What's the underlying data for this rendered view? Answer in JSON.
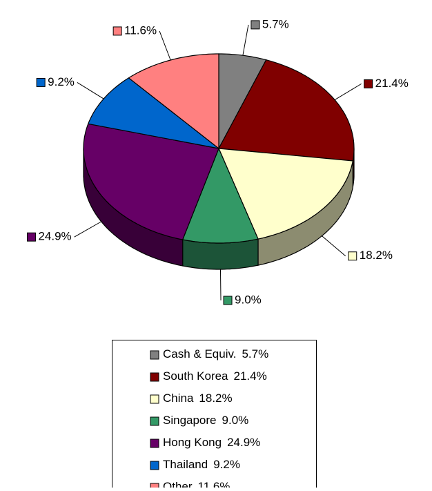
{
  "chart_data": {
    "type": "pie3d",
    "categories": [
      "Cash & Equiv.",
      "South Korea",
      "China",
      "Singapore",
      "Hong Kong",
      "Thailand",
      "Other"
    ],
    "values": [
      5.7,
      21.4,
      18.2,
      9.0,
      24.9,
      9.2,
      11.6
    ],
    "value_labels": [
      "5.7%",
      "21.4%",
      "18.2%",
      "9.0%",
      "24.9%",
      "9.2%",
      "11.6%"
    ],
    "colors": [
      "#808080",
      "#800000",
      "#ffffcc",
      "#339966",
      "#660066",
      "#0066cc",
      "#ff8080"
    ],
    "legend": "bottom"
  }
}
